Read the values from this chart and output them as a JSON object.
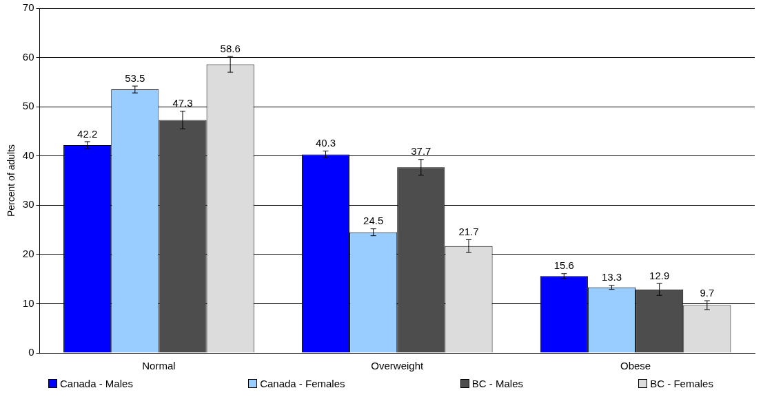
{
  "chart_data": {
    "type": "bar",
    "ylabel": "Percent of adults",
    "categories": [
      "Normal",
      "Overweight",
      "Obese"
    ],
    "series": [
      {
        "name": "Canada - Males",
        "color": "#0000ff",
        "values": [
          42.2,
          40.3,
          15.6
        ],
        "errors": [
          0.7,
          0.7,
          0.5
        ]
      },
      {
        "name": "Canada - Females",
        "color": "#99ccff",
        "values": [
          53.5,
          24.5,
          13.3
        ],
        "errors": [
          0.7,
          0.7,
          0.4
        ]
      },
      {
        "name": "BC - Males",
        "color": "#4d4d4d",
        "values": [
          47.3,
          37.7,
          12.9
        ],
        "errors": [
          1.8,
          1.6,
          1.2
        ]
      },
      {
        "name": "BC - Females",
        "color": "#dcdcdc",
        "values": [
          58.6,
          21.7,
          9.7
        ],
        "errors": [
          1.6,
          1.3,
          0.9
        ]
      }
    ],
    "ylim": [
      0,
      70
    ],
    "yticks": [
      0,
      10,
      20,
      30,
      40,
      50,
      60,
      70
    ],
    "grid": "y",
    "legend": "bottom",
    "data_labels": true
  }
}
